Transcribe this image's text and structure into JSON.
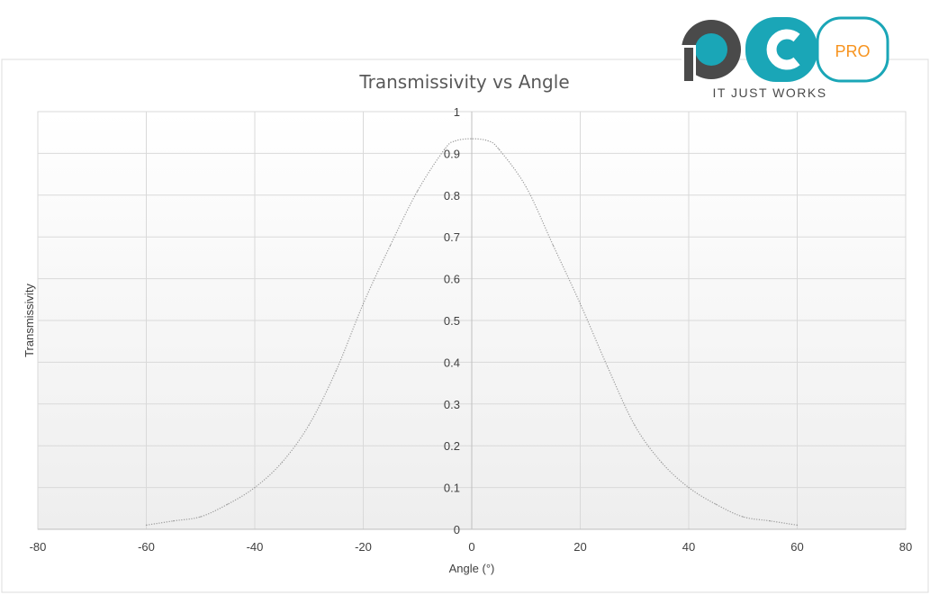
{
  "logo": {
    "badge": "PRO",
    "tagline": "IT JUST WORKS",
    "colors": {
      "dark": "#4a4a4a",
      "teal": "#1aa6b7",
      "orange": "#f7931e"
    }
  },
  "chart_data": {
    "type": "line",
    "title": "Transmissivity vs Angle",
    "xlabel": "Angle (°)",
    "ylabel": "Transmissivity",
    "xlim": [
      -80,
      80
    ],
    "ylim": [
      0,
      1
    ],
    "xticks": [
      "-80",
      "-60",
      "-40",
      "-20",
      "0",
      "20",
      "40",
      "60",
      "80"
    ],
    "yticks": [
      "0",
      "0.1",
      "0.2",
      "0.3",
      "0.4",
      "0.5",
      "0.6",
      "0.7",
      "0.8",
      "0.9",
      "1"
    ],
    "grid": true,
    "legend": "none",
    "series": [
      {
        "line_color": "#9a9a9a",
        "line_style": "dotted",
        "x": [
          -60,
          -55,
          -50,
          -45,
          -40,
          -35,
          -30,
          -25,
          -20,
          -15,
          -10,
          -5,
          -3,
          0,
          3,
          5,
          10,
          15,
          20,
          25,
          30,
          35,
          40,
          45,
          50,
          55,
          60
        ],
        "y": [
          0.01,
          0.02,
          0.03,
          0.06,
          0.1,
          0.16,
          0.25,
          0.38,
          0.54,
          0.68,
          0.81,
          0.91,
          0.93,
          0.935,
          0.93,
          0.91,
          0.82,
          0.68,
          0.54,
          0.39,
          0.25,
          0.16,
          0.1,
          0.06,
          0.03,
          0.02,
          0.01
        ]
      }
    ]
  }
}
